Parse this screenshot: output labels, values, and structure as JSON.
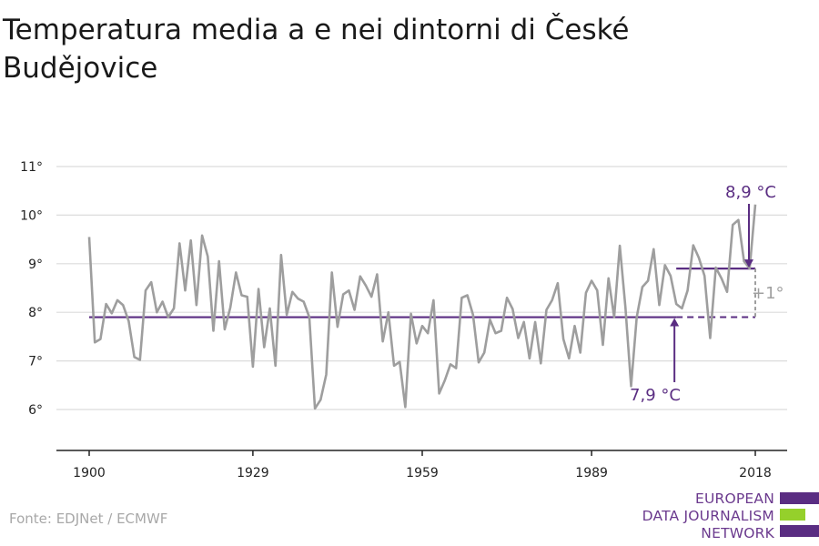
{
  "title": "Temperatura media a e nei dintorni di České Budějovice",
  "source": "Fonte: EDJNet / ECMWF",
  "logo": {
    "line1": "EUROPEAN",
    "line2": "DATA JOURNALISM",
    "line3": "NETWORK"
  },
  "colors": {
    "series": "#9e9e9e",
    "accent": "#5a2d82",
    "grid": "#dcdcdc",
    "axis": "#222222",
    "logo_green": "#95d02b"
  },
  "chart_data": {
    "type": "line",
    "title": "Temperatura media a e nei dintorni di České Budějovice",
    "xlabel": "",
    "ylabel": "",
    "xlim": [
      1900,
      2018
    ],
    "ylim": [
      5,
      11
    ],
    "x_ticks": [
      1900,
      1929,
      1959,
      1989,
      2018
    ],
    "y_ticks": [
      {
        "value": 6,
        "label": "6°"
      },
      {
        "value": 7,
        "label": "7°"
      },
      {
        "value": 8,
        "label": "8°"
      },
      {
        "value": 9,
        "label": "9°"
      },
      {
        "value": 10,
        "label": "10°"
      },
      {
        "value": 11,
        "label": "11°"
      }
    ],
    "grid": true,
    "series": [
      {
        "x": [
          1900,
          1901,
          1902,
          1903,
          1904,
          1905,
          1906,
          1907,
          1908,
          1909,
          1910,
          1911,
          1912,
          1913,
          1914,
          1915,
          1916,
          1917,
          1918,
          1919,
          1920,
          1921,
          1922,
          1923,
          1924,
          1925,
          1926,
          1927,
          1928,
          1929,
          1930,
          1931,
          1932,
          1933,
          1934,
          1935,
          1936,
          1937,
          1938,
          1939,
          1940,
          1941,
          1942,
          1943,
          1944,
          1945,
          1946,
          1947,
          1948,
          1949,
          1950,
          1951,
          1952,
          1953,
          1954,
          1955,
          1956,
          1957,
          1958,
          1959,
          1960,
          1961,
          1962,
          1963,
          1964,
          1965,
          1966,
          1967,
          1968,
          1969,
          1970,
          1971,
          1972,
          1973,
          1974,
          1975,
          1976,
          1977,
          1978,
          1979,
          1980,
          1981,
          1982,
          1983,
          1984,
          1985,
          1986,
          1987,
          1988,
          1989,
          1990,
          1991,
          1992,
          1993,
          1994,
          1995,
          1996,
          1997,
          1998,
          1999,
          2000,
          2001,
          2002,
          2003,
          2004,
          2005,
          2006,
          2007,
          2008,
          2009,
          2010,
          2011,
          2012,
          2013,
          2014,
          2015,
          2016,
          2017,
          2018
        ],
        "values": [
          9.55,
          7.38,
          7.45,
          8.17,
          7.98,
          8.25,
          8.15,
          7.82,
          7.08,
          7.02,
          8.45,
          8.62,
          8.0,
          8.22,
          7.9,
          8.08,
          9.42,
          8.45,
          9.48,
          8.15,
          9.58,
          9.15,
          7.62,
          9.05,
          7.65,
          8.1,
          8.82,
          8.35,
          8.32,
          6.88,
          8.48,
          7.28,
          8.08,
          6.9,
          9.18,
          7.95,
          8.42,
          8.28,
          8.22,
          7.9,
          6.02,
          6.2,
          6.72,
          8.82,
          7.7,
          8.37,
          8.45,
          8.05,
          8.74,
          8.55,
          8.32,
          8.78,
          7.4,
          8.0,
          6.9,
          6.98,
          6.05,
          7.97,
          7.36,
          7.72,
          7.57,
          8.25,
          6.33,
          6.6,
          6.93,
          6.85,
          8.3,
          8.35,
          7.95,
          6.97,
          7.17,
          7.85,
          7.57,
          7.62,
          8.3,
          8.07,
          7.47,
          7.8,
          7.05,
          7.8,
          6.95,
          8.05,
          8.25,
          8.6,
          7.45,
          7.05,
          7.72,
          7.17,
          8.4,
          8.65,
          8.45,
          7.33,
          8.7,
          7.9,
          9.37,
          8.1,
          6.48,
          7.9,
          8.52,
          8.65,
          9.3,
          8.15,
          8.97,
          8.75,
          8.17,
          8.08,
          8.45,
          9.38,
          9.12,
          8.75,
          7.47,
          8.92,
          8.7,
          8.42,
          9.8,
          9.9,
          9.05,
          8.9,
          10.22
        ]
      }
    ],
    "annotations": {
      "baseline": {
        "value": 7.9,
        "label": "7,9 °C",
        "from": 1900,
        "to": 2018
      },
      "recent": {
        "value": 8.9,
        "label": "8,9 °C",
        "from": 2004,
        "to": 2018
      },
      "difference_label": "+1°"
    }
  }
}
